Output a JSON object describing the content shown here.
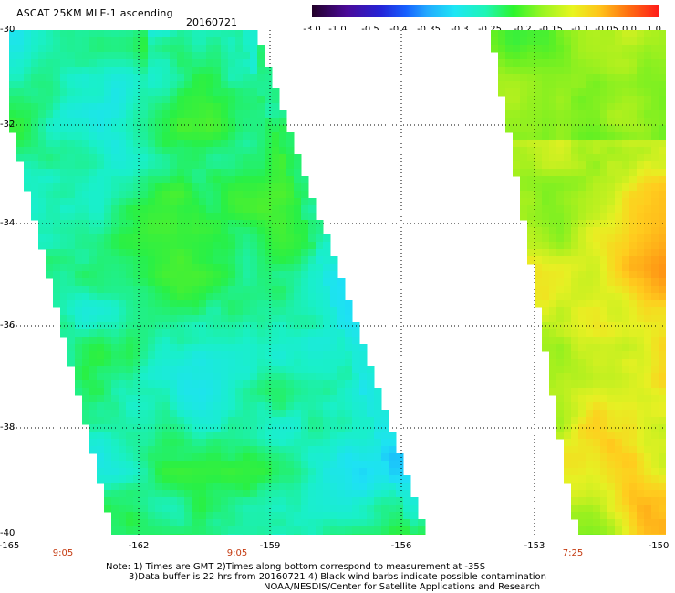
{
  "header": {
    "title": "ASCAT 25KM MLE-1 ascending",
    "date": "20160721"
  },
  "colorbar": {
    "labels": [
      "-3.0",
      "-1.0",
      "-0.5",
      "-0.4",
      "-0.35",
      "-0.3",
      "-0.25",
      "-0.2",
      "-0.15",
      "-0.1",
      "-0.05",
      "0.0",
      "1.0"
    ],
    "colors": [
      "#2a0030",
      "#5a10a0",
      "#2222d8",
      "#1a6cff",
      "#23b0ff",
      "#1ee8f0",
      "#19f5b0",
      "#2ff52f",
      "#9ff51f",
      "#e6f520",
      "#ffc01a",
      "#ff6a10",
      "#ff1a1a"
    ]
  },
  "map": {
    "y_ticks": [
      "-30",
      "-32",
      "-34",
      "-36",
      "-38",
      "-40"
    ],
    "x_ticks": [
      "-165",
      "-162",
      "-159",
      "-156",
      "-153",
      "-150"
    ],
    "pass_times": [
      "9:05",
      "9:05",
      "7:25"
    ],
    "swath_left": {
      "lat_range": [
        -40,
        -30
      ],
      "dominant_value": -0.27,
      "bias": -0.3
    },
    "swath_right": {
      "lat_range": [
        -40,
        -30
      ],
      "dominant_value": -0.12,
      "bias": -0.1
    }
  },
  "notes": {
    "line1": "Note: 1) Times are GMT 2)Times along bottom correspond to measurement at -35S",
    "line2": "3)Data buffer is 22 hrs from 20160721 4) Black wind barbs indicate possible contamination",
    "line3": "NOAA/NESDIS/Center for Satellite Applications and Research"
  }
}
